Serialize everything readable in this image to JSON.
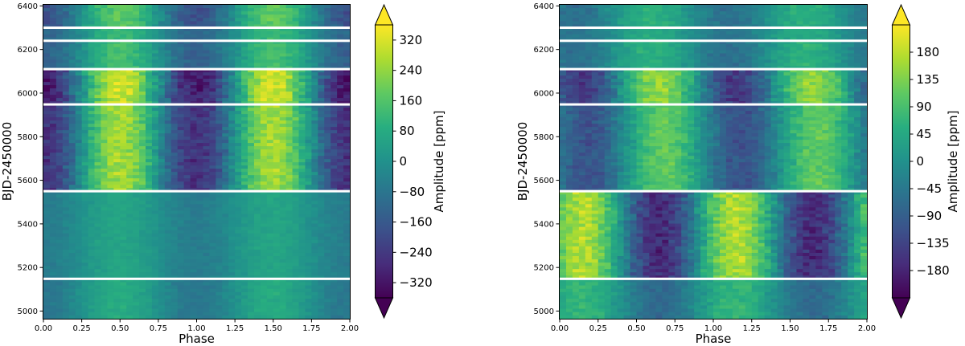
{
  "chart_data": [
    {
      "type": "heatmap",
      "title": "",
      "xlabel": "Phase",
      "ylabel": "BJD-2450000",
      "xlim": [
        0.0,
        2.0
      ],
      "ylim": [
        4965,
        6405
      ],
      "x_ticks": [
        "0.00",
        "0.25",
        "0.50",
        "0.75",
        "1.00",
        "1.25",
        "1.50",
        "1.75",
        "2.00"
      ],
      "y_ticks": [
        "5000",
        "5200",
        "5400",
        "5600",
        "5800",
        "6000",
        "6200",
        "6400"
      ],
      "gaps_bjd": [
        6300,
        6240,
        6110,
        5948,
        5550,
        5148
      ],
      "colorbar": {
        "label": "Amplitude [ppm]",
        "min": -360,
        "max": 360,
        "extend": "both",
        "ticks": [
          "−320",
          "−240",
          "−160",
          "−80",
          "0",
          "80",
          "160",
          "240",
          "320"
        ]
      },
      "bands": [
        {
          "start": 4965,
          "end": 5148,
          "peak_phase": 0.5,
          "amplitude": 80
        },
        {
          "start": 5148,
          "end": 5550,
          "peak_phase": 0.5,
          "amplitude": 60
        },
        {
          "start": 5550,
          "end": 5948,
          "peak_phase": 0.5,
          "amplitude": 260
        },
        {
          "start": 5948,
          "end": 6110,
          "peak_phase": 0.5,
          "amplitude": 310
        },
        {
          "start": 6110,
          "end": 6240,
          "peak_phase": 0.5,
          "amplitude": 140
        },
        {
          "start": 6240,
          "end": 6300,
          "peak_phase": 0.5,
          "amplitude": 120
        },
        {
          "start": 6300,
          "end": 6405,
          "peak_phase": 0.5,
          "amplitude": 180
        }
      ]
    },
    {
      "type": "heatmap",
      "title": "",
      "xlabel": "Phase",
      "ylabel": "BJD-2450000",
      "xlim": [
        0.0,
        2.0
      ],
      "ylim": [
        4965,
        6405
      ],
      "x_ticks": [
        "0.00",
        "0.25",
        "0.50",
        "0.75",
        "1.00",
        "1.25",
        "1.50",
        "1.75",
        "2.00"
      ],
      "y_ticks": [
        "5000",
        "5200",
        "5400",
        "5600",
        "5800",
        "6000",
        "6200",
        "6400"
      ],
      "gaps_bjd": [
        6300,
        6240,
        6110,
        5948,
        5550,
        5148
      ],
      "colorbar": {
        "label": "Amplitude [ppm]",
        "min": -225,
        "max": 225,
        "extend": "both",
        "ticks": [
          "−180",
          "−135",
          "−90",
          "−45",
          "0",
          "45",
          "90",
          "135",
          "180"
        ]
      },
      "bands": [
        {
          "start": 4965,
          "end": 5148,
          "peak_phase": 0.15,
          "amplitude": 70
        },
        {
          "start": 5148,
          "end": 5550,
          "peak_phase": 0.15,
          "amplitude": 170
        },
        {
          "start": 5550,
          "end": 5948,
          "peak_phase": 0.68,
          "amplitude": 110
        },
        {
          "start": 5948,
          "end": 6110,
          "peak_phase": 0.65,
          "amplitude": 150
        },
        {
          "start": 6110,
          "end": 6240,
          "peak_phase": 0.6,
          "amplitude": 60
        },
        {
          "start": 6240,
          "end": 6300,
          "peak_phase": 0.6,
          "amplitude": 50
        },
        {
          "start": 6300,
          "end": 6405,
          "peak_phase": 0.6,
          "amplitude": 60
        }
      ]
    }
  ]
}
